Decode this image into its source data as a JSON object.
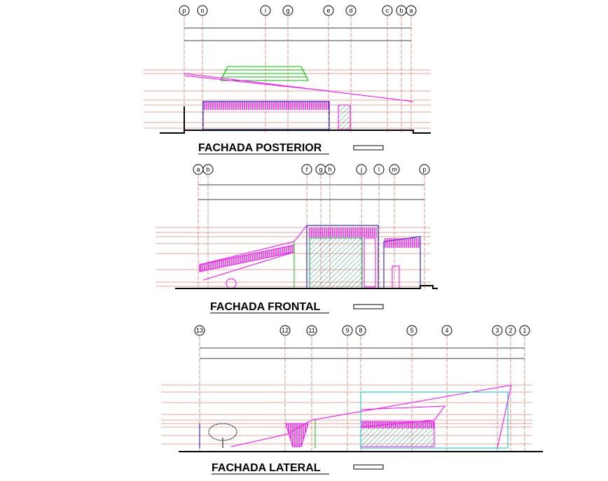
{
  "views": [
    {
      "title": "FACHADA POSTERIOR",
      "grid_labels": [
        "p",
        "o",
        "i",
        "g",
        "e",
        "d",
        "c",
        "b",
        "a"
      ]
    },
    {
      "title": "FACHADA FRONTAL",
      "grid_labels": [
        "a",
        "b",
        "f",
        "g",
        "h",
        "j",
        "l",
        "m",
        "p"
      ]
    },
    {
      "title": "FACHADA LATERAL",
      "grid_labels": [
        "13",
        "12",
        "11",
        "9",
        "8",
        "5",
        "4",
        "3",
        "2",
        "1"
      ]
    }
  ]
}
